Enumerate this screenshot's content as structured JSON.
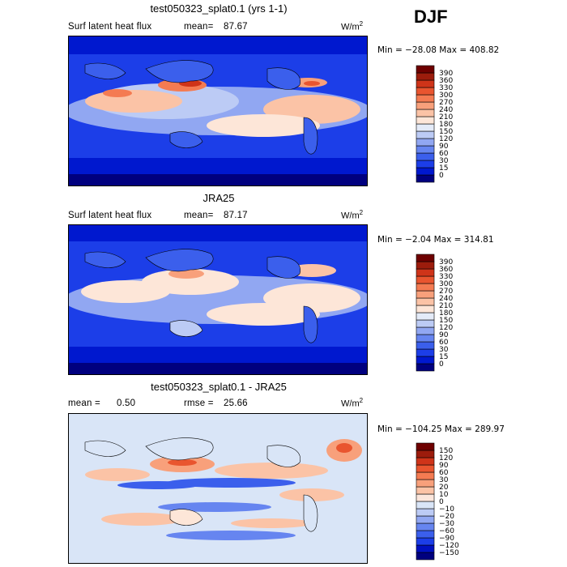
{
  "season": "DJF",
  "colors": {
    "abs_scale": [
      "#00007f",
      "#0018cf",
      "#1c3ee8",
      "#3b5fec",
      "#6685f0",
      "#91a7f2",
      "#bccbf5",
      "#e4ebf8",
      "#fde6d8",
      "#fbc3a6",
      "#f8a07b",
      "#f47b52",
      "#e9552f",
      "#cf3419",
      "#9c1c0c",
      "#6e0000"
    ],
    "diff_scale": [
      "#00007f",
      "#0010c0",
      "#1c3ee8",
      "#3b5fec",
      "#6685f0",
      "#91a7f2",
      "#bccbf5",
      "#d9e5f7",
      "#fbe6dc",
      "#fbc3a6",
      "#f8a07b",
      "#f47b52",
      "#e9552f",
      "#cf3419",
      "#9c1c0c",
      "#6e0000"
    ]
  },
  "panels": [
    {
      "title": "test050323_splat0.1 (yrs 1-1)",
      "left_label": "Surf latent heat flux",
      "stat_label": "mean=",
      "stat_value": "87.67",
      "unit_base": "W/m",
      "unit_exp": "2",
      "minmax": "Min = −28.08  Max = 408.82"
    },
    {
      "title": "JRA25",
      "left_label": "Surf latent heat flux",
      "stat_label": "mean=",
      "stat_value": "87.17",
      "unit_base": "W/m",
      "unit_exp": "2",
      "minmax": "Min =  −2.04  Max = 314.81"
    },
    {
      "title": "test050323_splat0.1 - JRA25",
      "left_label": "mean =",
      "left_value": "0.50",
      "stat_label": "rmse =",
      "stat_value": "25.66",
      "unit_base": "W/m",
      "unit_exp": "2",
      "minmax": "Min = −104.25  Max = 289.97"
    }
  ],
  "chart_data": [
    {
      "type": "heatmap",
      "title": "test050323_splat0.1 (yrs 1-1)",
      "variable": "Surf latent heat flux",
      "units": "W/m^2",
      "mean": 87.67,
      "min": -28.08,
      "max": 408.82,
      "contour_levels": [
        "0",
        "15",
        "30",
        "60",
        "90",
        "120",
        "150",
        "180",
        "210",
        "240",
        "270",
        "300",
        "330",
        "360",
        "390"
      ]
    },
    {
      "type": "heatmap",
      "title": "JRA25",
      "variable": "Surf latent heat flux",
      "units": "W/m^2",
      "mean": 87.17,
      "min": -2.04,
      "max": 314.81,
      "contour_levels": [
        "0",
        "15",
        "30",
        "60",
        "90",
        "120",
        "150",
        "180",
        "210",
        "240",
        "270",
        "300",
        "330",
        "360",
        "390"
      ]
    },
    {
      "type": "heatmap",
      "title": "test050323_splat0.1 - JRA25",
      "units": "W/m^2",
      "mean": 0.5,
      "rmse": 25.66,
      "min": -104.25,
      "max": 289.97,
      "contour_levels": [
        "-150",
        "-120",
        "-90",
        "-60",
        "-30",
        "-20",
        "-10",
        "0",
        "10",
        "20",
        "30",
        "60",
        "90",
        "120",
        "150"
      ]
    }
  ]
}
